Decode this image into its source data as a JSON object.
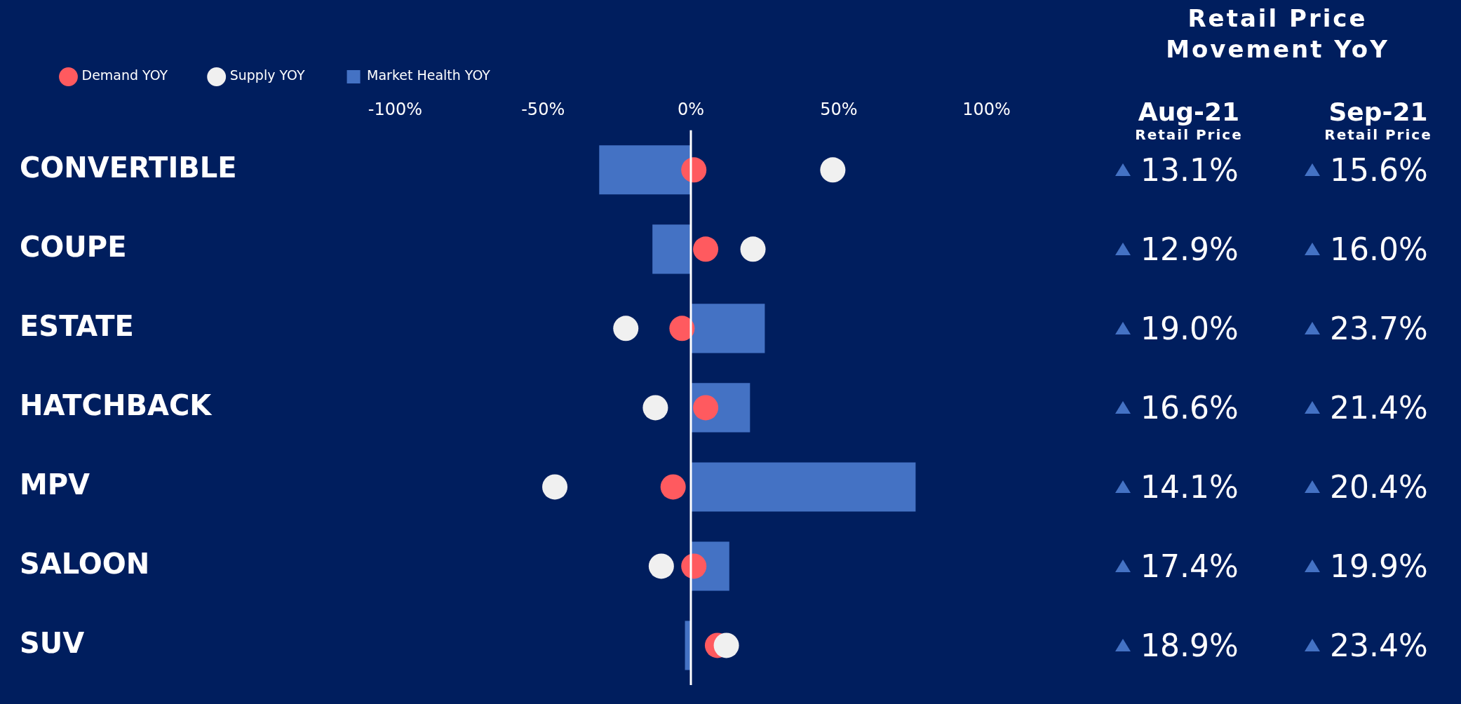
{
  "chart_data": [
    {
      "type": "bar",
      "orientation": "horizontal",
      "categories": [
        "CONVERTIBLE",
        "COUPE",
        "ESTATE",
        "HATCHBACK",
        "MPV",
        "SALOON",
        "SUV"
      ],
      "series": [
        {
          "name": "Demand YOY",
          "type": "scatter",
          "color": "#ff5a5f",
          "values": [
            1,
            5,
            -3,
            5,
            -6,
            1,
            9
          ]
        },
        {
          "name": "Supply YOY",
          "type": "scatter",
          "color": "#f0f0f0",
          "values": [
            48,
            21,
            -22,
            -12,
            -46,
            -10,
            12
          ]
        },
        {
          "name": "Market Health YOY",
          "color": "#4472c4",
          "values": [
            -31,
            -13,
            25,
            20,
            76,
            13,
            -2
          ]
        }
      ],
      "xlim": [
        -100,
        100
      ],
      "xticks": [
        {
          "value": -100,
          "label": "-100%"
        },
        {
          "value": -50,
          "label": "-50%"
        },
        {
          "value": 0,
          "label": "0%"
        },
        {
          "value": 50,
          "label": "50%"
        },
        {
          "value": 100,
          "label": "100%"
        }
      ],
      "ref_lines": [
        {
          "axis": "x",
          "value": 0,
          "color": "#ffffff"
        }
      ],
      "legend": "top left",
      "marker": "circle",
      "grid": false
    },
    {
      "type": "other",
      "title": "Retail Price Movement YoY",
      "annotations": [
        "Aug-21",
        "Retail Price",
        "Sep-21",
        "Retail Price",
        "13.1%",
        "15.6%",
        "12.9%",
        "16.0%",
        "19.0%",
        "23.7%",
        "16.6%",
        "21.4%",
        "14.1%",
        "20.4%",
        "17.4%",
        "19.9%",
        "18.9%",
        "23.4%"
      ]
    }
  ]
}
